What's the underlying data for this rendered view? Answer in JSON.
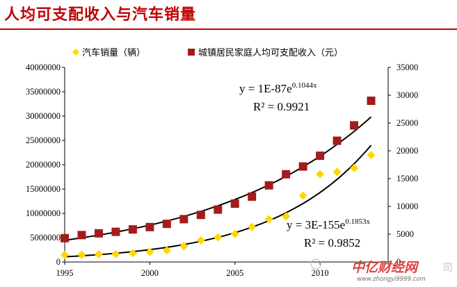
{
  "page_title": "人均可支配收入与汽车销量",
  "chart_data": {
    "type": "scatter",
    "x": [
      1995,
      1996,
      1997,
      1998,
      1999,
      2000,
      2001,
      2002,
      2003,
      2004,
      2005,
      2006,
      2007,
      2008,
      2009,
      2010,
      2011,
      2012,
      2013
    ],
    "x_ticks": [
      "1995",
      "2000",
      "2005",
      "2010"
    ],
    "xlim": [
      1995,
      2014
    ],
    "y_left_ticks": [
      "0",
      "5000000",
      "10000000",
      "15000000",
      "20000000",
      "25000000",
      "30000000",
      "35000000",
      "40000000"
    ],
    "y_left_lim": [
      0,
      40000000
    ],
    "y_right_ticks": [
      "0",
      "5000",
      "10000",
      "15000",
      "20000",
      "25000",
      "30000",
      "35000"
    ],
    "y_right_lim": [
      0,
      35000
    ],
    "legend_position": "top",
    "series": [
      {
        "name": "汽车销量（辆）",
        "axis": "left",
        "marker": "diamond",
        "color": "#ffd700",
        "values": [
          1450000,
          1480000,
          1580000,
          1630000,
          1830000,
          2080000,
          2370000,
          3250000,
          4440000,
          5070000,
          5760000,
          7220000,
          8800000,
          9380000,
          13640000,
          18060000,
          18510000,
          19310000,
          21980000
        ],
        "trendline": {
          "equation": "y = 3E-155e",
          "exponent": "0.1853x",
          "r2": "R² = 0.9852",
          "color": "#000000"
        }
      },
      {
        "name": "城镇居民家庭人均可支配收入（元）",
        "axis": "right",
        "marker": "square",
        "color": "#a31c1c",
        "values": [
          4283,
          4839,
          5160,
          5425,
          5854,
          6280,
          6860,
          7703,
          8472,
          9422,
          10493,
          11759,
          13786,
          15781,
          17175,
          19109,
          21810,
          24565,
          29000
        ],
        "trendline": {
          "equation": "y = 1E-87e",
          "exponent": "0.1044x",
          "r2": "R² = 0.9921",
          "color": "#000000"
        }
      }
    ]
  },
  "watermark": {
    "brand": "中亿财经网",
    "url": "www.zhongyi9999.com",
    "suffix": "司"
  }
}
